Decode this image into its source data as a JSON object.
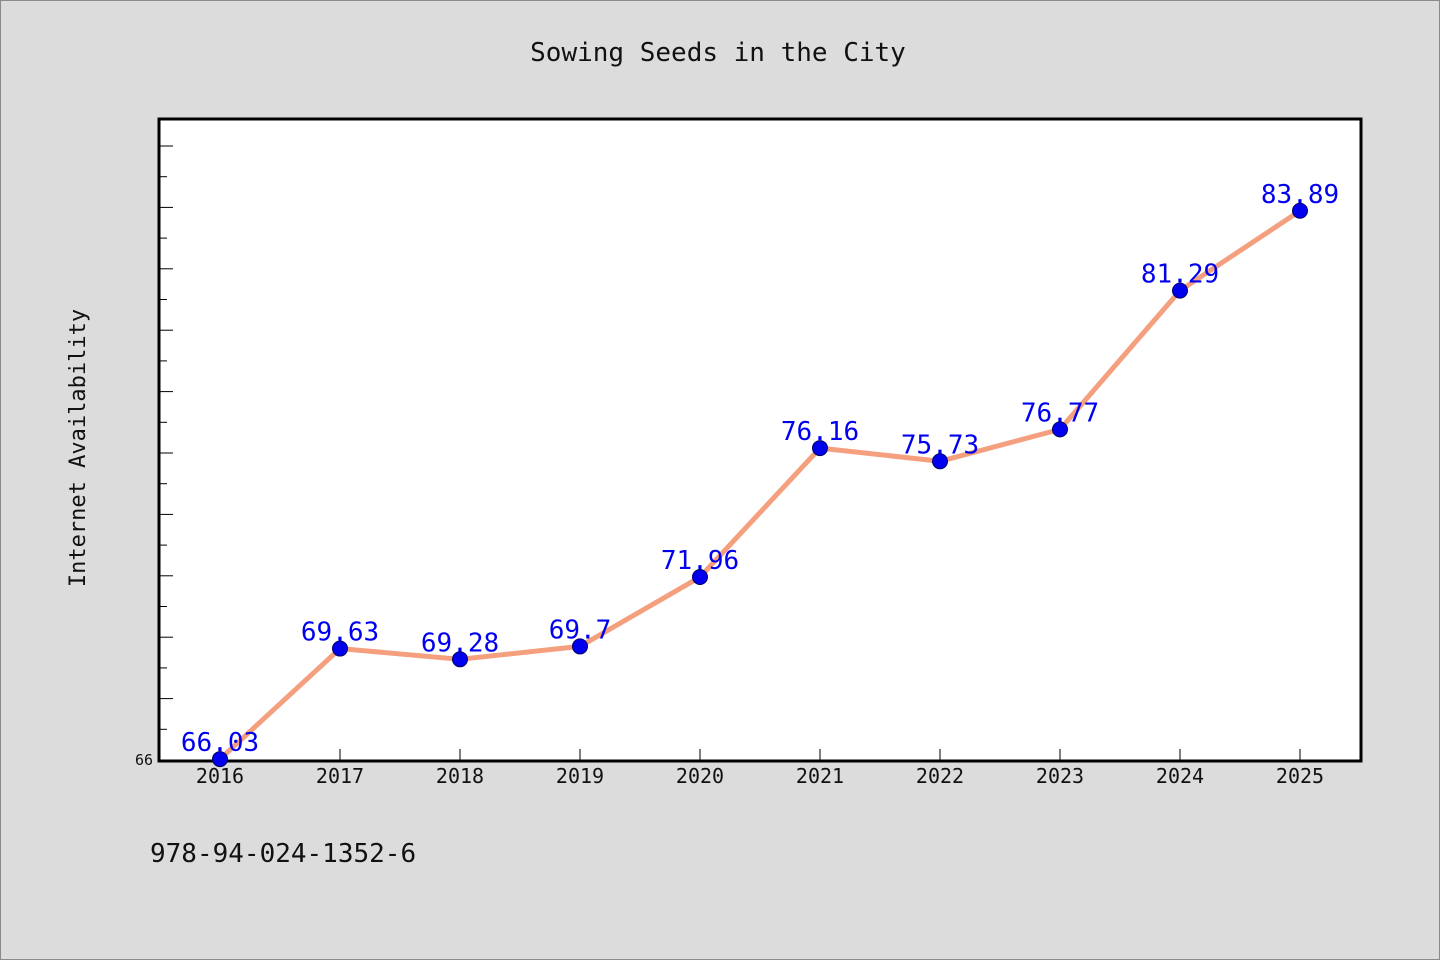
{
  "chart_data": {
    "type": "line",
    "title": "Sowing Seeds in the City",
    "xlabel": "",
    "ylabel": "Internet Availability",
    "x": [
      "2016",
      "2017",
      "2018",
      "2019",
      "2020",
      "2021",
      "2022",
      "2023",
      "2024",
      "2025"
    ],
    "series": [
      {
        "values": [
          66.03,
          69.63,
          69.28,
          69.7,
          71.96,
          76.16,
          75.73,
          76.77,
          81.29,
          83.89
        ],
        "labels": [
          "66.03",
          "69.63",
          "69.28",
          "69.7",
          "71.96",
          "76.16",
          "75.73",
          "76.77",
          "81.29",
          "83.89"
        ]
      }
    ],
    "ylim": [
      66,
      86
    ],
    "ytick_labels": [
      "66"
    ],
    "grid": false,
    "colors": {
      "line": "#f4a07e",
      "marker": "#0000ee",
      "data_label": "#0000ee"
    }
  },
  "footer": {
    "isbn": "978-94-024-1352-6"
  }
}
